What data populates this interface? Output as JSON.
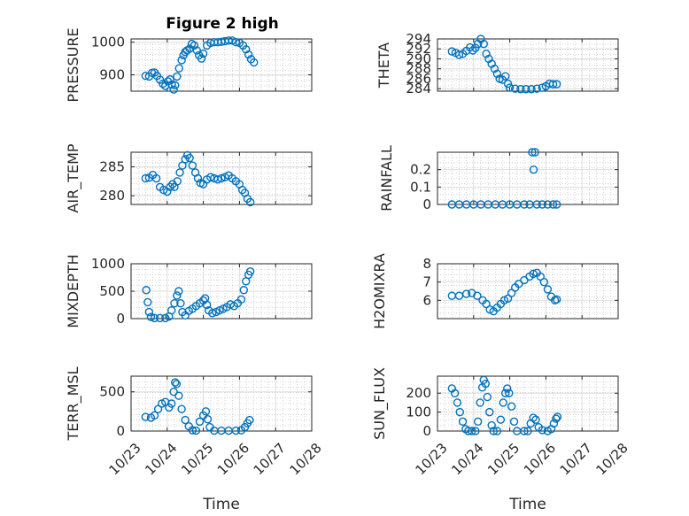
{
  "figure": {
    "title": "Figure 2 high",
    "marker_color": "#0072BD",
    "x_tick_labels": [
      "10/23",
      "10/24",
      "10/25",
      "10/26",
      "10/27",
      "10/28"
    ],
    "x_label": "Time"
  },
  "chart_data": [
    {
      "type": "scatter",
      "id": "pressure",
      "ylabel": "PRESSURE",
      "xlim": [
        23,
        28
      ],
      "ylim": [
        850,
        1010
      ],
      "yticks": [
        900,
        1000
      ],
      "grid": true,
      "points": [
        [
          23.4,
          897
        ],
        [
          23.5,
          895
        ],
        [
          23.58,
          906
        ],
        [
          23.65,
          907
        ],
        [
          23.72,
          897
        ],
        [
          23.8,
          885
        ],
        [
          23.88,
          873
        ],
        [
          23.95,
          866
        ],
        [
          24.02,
          880
        ],
        [
          24.08,
          886
        ],
        [
          24.13,
          870
        ],
        [
          24.18,
          855
        ],
        [
          24.22,
          868
        ],
        [
          24.27,
          895
        ],
        [
          24.33,
          920
        ],
        [
          24.4,
          945
        ],
        [
          24.45,
          960
        ],
        [
          24.5,
          970
        ],
        [
          24.55,
          975
        ],
        [
          24.62,
          980
        ],
        [
          24.68,
          995
        ],
        [
          24.75,
          990
        ],
        [
          24.82,
          975
        ],
        [
          24.88,
          960
        ],
        [
          24.95,
          950
        ],
        [
          25.0,
          965
        ],
        [
          25.1,
          990
        ],
        [
          25.2,
          998
        ],
        [
          25.3,
          1000
        ],
        [
          25.4,
          1000
        ],
        [
          25.5,
          1001
        ],
        [
          25.6,
          1003
        ],
        [
          25.7,
          1005
        ],
        [
          25.8,
          1005
        ],
        [
          25.9,
          1000
        ],
        [
          26.0,
          998
        ],
        [
          26.1,
          990
        ],
        [
          26.18,
          978
        ],
        [
          26.25,
          962
        ],
        [
          26.32,
          948
        ],
        [
          26.4,
          938
        ]
      ]
    },
    {
      "type": "scatter",
      "id": "theta",
      "ylabel": "THETA",
      "xlim": [
        23,
        28
      ],
      "ylim": [
        283.5,
        294
      ],
      "yticks": [
        284,
        286,
        288,
        290,
        292,
        294
      ],
      "grid": true,
      "points": [
        [
          23.4,
          291.5
        ],
        [
          23.5,
          291.2
        ],
        [
          23.6,
          290.8
        ],
        [
          23.7,
          291.0
        ],
        [
          23.8,
          291.6
        ],
        [
          23.9,
          292.3
        ],
        [
          23.98,
          291.7
        ],
        [
          24.05,
          292.2
        ],
        [
          24.12,
          293.0
        ],
        [
          24.2,
          294.0
        ],
        [
          24.28,
          293.0
        ],
        [
          24.35,
          291.0
        ],
        [
          24.42,
          290.0
        ],
        [
          24.5,
          289.0
        ],
        [
          24.58,
          288.0
        ],
        [
          24.65,
          287.0
        ],
        [
          24.72,
          286.0
        ],
        [
          24.8,
          285.8
        ],
        [
          24.88,
          286.5
        ],
        [
          24.95,
          285.0
        ],
        [
          25.0,
          284.2
        ],
        [
          25.15,
          284.0
        ],
        [
          25.3,
          283.9
        ],
        [
          25.45,
          283.9
        ],
        [
          25.6,
          283.9
        ],
        [
          25.75,
          284.0
        ],
        [
          25.9,
          284.2
        ],
        [
          26.0,
          284.5
        ],
        [
          26.1,
          285.0
        ],
        [
          26.2,
          284.9
        ],
        [
          26.3,
          284.9
        ]
      ]
    },
    {
      "type": "scatter",
      "id": "air_temp",
      "ylabel": "AIR_TEMP",
      "xlim": [
        23,
        28
      ],
      "ylim": [
        278.5,
        287.5
      ],
      "yticks": [
        280,
        285
      ],
      "grid": true,
      "points": [
        [
          23.4,
          283.0
        ],
        [
          23.5,
          283.1
        ],
        [
          23.6,
          283.6
        ],
        [
          23.7,
          283.0
        ],
        [
          23.8,
          281.5
        ],
        [
          23.9,
          281.0
        ],
        [
          24.0,
          280.7
        ],
        [
          24.08,
          281.5
        ],
        [
          24.15,
          282.0
        ],
        [
          24.2,
          281.5
        ],
        [
          24.28,
          282.5
        ],
        [
          24.35,
          284.0
        ],
        [
          24.42,
          285.2
        ],
        [
          24.5,
          286.3
        ],
        [
          24.56,
          287.0
        ],
        [
          24.62,
          286.5
        ],
        [
          24.7,
          285.2
        ],
        [
          24.78,
          284.0
        ],
        [
          24.85,
          283.0
        ],
        [
          24.92,
          282.2
        ],
        [
          25.0,
          282.0
        ],
        [
          25.1,
          282.8
        ],
        [
          25.2,
          283.2
        ],
        [
          25.3,
          283.0
        ],
        [
          25.4,
          282.8
        ],
        [
          25.5,
          283.0
        ],
        [
          25.6,
          283.2
        ],
        [
          25.7,
          283.5
        ],
        [
          25.8,
          283.0
        ],
        [
          25.9,
          282.5
        ],
        [
          26.0,
          282.0
        ],
        [
          26.08,
          281.0
        ],
        [
          26.15,
          280.5
        ],
        [
          26.22,
          279.5
        ],
        [
          26.3,
          278.9
        ]
      ]
    },
    {
      "type": "scatter",
      "id": "rainfall",
      "ylabel": "RAINFALL",
      "xlim": [
        23,
        28
      ],
      "ylim": [
        0,
        0.3
      ],
      "yticks": [
        0,
        0.1,
        0.2
      ],
      "grid": true,
      "points": [
        [
          23.4,
          0
        ],
        [
          23.6,
          0
        ],
        [
          23.8,
          0
        ],
        [
          24.0,
          0
        ],
        [
          24.2,
          0
        ],
        [
          24.4,
          0
        ],
        [
          24.6,
          0
        ],
        [
          24.8,
          0
        ],
        [
          25.0,
          0
        ],
        [
          25.2,
          0
        ],
        [
          25.4,
          0
        ],
        [
          25.55,
          0
        ],
        [
          25.62,
          0.3
        ],
        [
          25.66,
          0.2
        ],
        [
          25.7,
          0.3
        ],
        [
          25.75,
          0
        ],
        [
          25.9,
          0
        ],
        [
          26.05,
          0
        ],
        [
          26.2,
          0
        ],
        [
          26.3,
          0
        ]
      ]
    },
    {
      "type": "scatter",
      "id": "mixdepth",
      "ylabel": "MIXDEPTH",
      "xlim": [
        23,
        28
      ],
      "ylim": [
        0,
        1000
      ],
      "yticks": [
        0,
        500,
        1000
      ],
      "grid": true,
      "points": [
        [
          23.42,
          520
        ],
        [
          23.46,
          300
        ],
        [
          23.5,
          120
        ],
        [
          23.55,
          30
        ],
        [
          23.65,
          10
        ],
        [
          23.8,
          10
        ],
        [
          23.95,
          10
        ],
        [
          24.05,
          40
        ],
        [
          24.12,
          150
        ],
        [
          24.2,
          280
        ],
        [
          24.27,
          420
        ],
        [
          24.32,
          500
        ],
        [
          24.37,
          280
        ],
        [
          24.42,
          120
        ],
        [
          24.5,
          60
        ],
        [
          24.6,
          140
        ],
        [
          24.7,
          180
        ],
        [
          24.8,
          230
        ],
        [
          24.9,
          280
        ],
        [
          25.0,
          330
        ],
        [
          25.05,
          370
        ],
        [
          25.1,
          250
        ],
        [
          25.15,
          150
        ],
        [
          25.25,
          100
        ],
        [
          25.35,
          120
        ],
        [
          25.45,
          150
        ],
        [
          25.55,
          180
        ],
        [
          25.65,
          210
        ],
        [
          25.75,
          260
        ],
        [
          25.85,
          230
        ],
        [
          25.95,
          280
        ],
        [
          26.05,
          350
        ],
        [
          26.12,
          520
        ],
        [
          26.18,
          680
        ],
        [
          26.25,
          800
        ],
        [
          26.3,
          860
        ]
      ]
    },
    {
      "type": "scatter",
      "id": "h2omixra",
      "ylabel": "H2OMIXRA",
      "xlim": [
        23,
        28
      ],
      "ylim": [
        5,
        8
      ],
      "yticks": [
        6,
        7,
        8
      ],
      "grid": true,
      "points": [
        [
          23.4,
          6.25
        ],
        [
          23.6,
          6.25
        ],
        [
          23.8,
          6.35
        ],
        [
          23.95,
          6.4
        ],
        [
          24.1,
          6.25
        ],
        [
          24.25,
          6.0
        ],
        [
          24.35,
          5.8
        ],
        [
          24.45,
          5.5
        ],
        [
          24.55,
          5.4
        ],
        [
          24.65,
          5.6
        ],
        [
          24.75,
          5.8
        ],
        [
          24.85,
          6.0
        ],
        [
          24.95,
          6.1
        ],
        [
          25.05,
          6.4
        ],
        [
          25.15,
          6.7
        ],
        [
          25.25,
          6.9
        ],
        [
          25.4,
          7.1
        ],
        [
          25.55,
          7.3
        ],
        [
          25.65,
          7.45
        ],
        [
          25.75,
          7.5
        ],
        [
          25.85,
          7.3
        ],
        [
          25.95,
          7.0
        ],
        [
          26.05,
          6.6
        ],
        [
          26.15,
          6.2
        ],
        [
          26.25,
          6.0
        ],
        [
          26.3,
          6.05
        ]
      ]
    },
    {
      "type": "scatter",
      "id": "terr_msl",
      "ylabel": "TERR_MSL",
      "xlim": [
        23,
        28
      ],
      "ylim": [
        0,
        700
      ],
      "yticks": [
        0,
        500
      ],
      "grid": true,
      "points": [
        [
          23.4,
          180
        ],
        [
          23.55,
          170
        ],
        [
          23.65,
          200
        ],
        [
          23.75,
          280
        ],
        [
          23.85,
          350
        ],
        [
          23.95,
          370
        ],
        [
          24.05,
          300
        ],
        [
          24.12,
          350
        ],
        [
          24.18,
          500
        ],
        [
          24.22,
          620
        ],
        [
          24.26,
          600
        ],
        [
          24.32,
          450
        ],
        [
          24.4,
          280
        ],
        [
          24.5,
          140
        ],
        [
          24.6,
          60
        ],
        [
          24.7,
          10
        ],
        [
          24.8,
          5
        ],
        [
          24.9,
          120
        ],
        [
          25.0,
          200
        ],
        [
          25.07,
          250
        ],
        [
          25.12,
          150
        ],
        [
          25.18,
          50
        ],
        [
          25.3,
          5
        ],
        [
          25.5,
          5
        ],
        [
          25.7,
          5
        ],
        [
          25.9,
          5
        ],
        [
          26.05,
          10
        ],
        [
          26.15,
          50
        ],
        [
          26.22,
          100
        ],
        [
          26.28,
          140
        ]
      ]
    },
    {
      "type": "scatter",
      "id": "sun_flux",
      "ylabel": "SUN_FLUX",
      "xlim": [
        23,
        28
      ],
      "ylim": [
        0,
        290
      ],
      "yticks": [
        0,
        100,
        200
      ],
      "grid": true,
      "points": [
        [
          23.4,
          225
        ],
        [
          23.48,
          200
        ],
        [
          23.55,
          150
        ],
        [
          23.62,
          100
        ],
        [
          23.7,
          50
        ],
        [
          23.78,
          10
        ],
        [
          23.85,
          0
        ],
        [
          23.95,
          0
        ],
        [
          24.05,
          0
        ],
        [
          24.12,
          50
        ],
        [
          24.18,
          150
        ],
        [
          24.24,
          230
        ],
        [
          24.28,
          270
        ],
        [
          24.33,
          250
        ],
        [
          24.38,
          180
        ],
        [
          24.44,
          100
        ],
        [
          24.5,
          30
        ],
        [
          24.55,
          0
        ],
        [
          24.65,
          0
        ],
        [
          24.75,
          60
        ],
        [
          24.82,
          150
        ],
        [
          24.88,
          200
        ],
        [
          24.93,
          225
        ],
        [
          24.98,
          200
        ],
        [
          25.05,
          130
        ],
        [
          25.12,
          50
        ],
        [
          25.2,
          0
        ],
        [
          25.4,
          0
        ],
        [
          25.5,
          0
        ],
        [
          25.58,
          40
        ],
        [
          25.65,
          70
        ],
        [
          25.72,
          60
        ],
        [
          25.8,
          20
        ],
        [
          25.9,
          5
        ],
        [
          26.05,
          0
        ],
        [
          26.15,
          10
        ],
        [
          26.22,
          40
        ],
        [
          26.28,
          65
        ],
        [
          26.32,
          75
        ]
      ]
    }
  ]
}
